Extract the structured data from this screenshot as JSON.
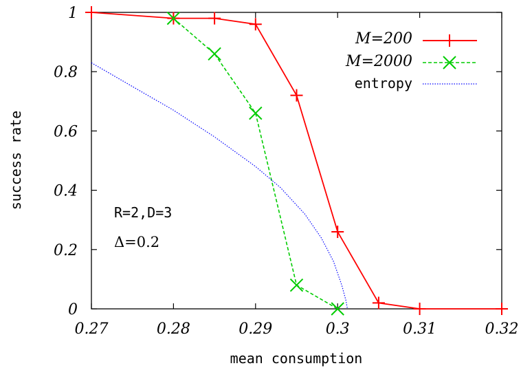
{
  "chart_data": {
    "type": "line",
    "title": "",
    "xlabel": "mean consumption",
    "ylabel": "success rate",
    "xlim": [
      0.27,
      0.32
    ],
    "ylim": [
      0,
      1
    ],
    "x_ticks": [
      0.27,
      0.28,
      0.29,
      0.3,
      0.31,
      0.32
    ],
    "x_tick_labels": [
      "0.27",
      "0.28",
      "0.29",
      "0.3",
      "0.31",
      "0.32"
    ],
    "y_ticks": [
      0,
      0.2,
      0.4,
      0.6,
      0.8,
      1
    ],
    "y_tick_labels": [
      "0",
      "0.2",
      "0.4",
      "0.6",
      "0.8",
      "1"
    ],
    "grid": false,
    "legend_position": "top-right",
    "annotations": [
      "R=2,D=3",
      "Δ=0.2"
    ],
    "series": [
      {
        "name": "M=200",
        "color": "#ff0000",
        "marker": "plus",
        "line_style": "solid",
        "x": [
          0.27,
          0.28,
          0.285,
          0.29,
          0.295,
          0.3,
          0.305,
          0.31,
          0.32
        ],
        "y": [
          1.0,
          0.98,
          0.98,
          0.96,
          0.72,
          0.26,
          0.02,
          0.0,
          0.0
        ]
      },
      {
        "name": "M=2000",
        "color": "#00cc00",
        "marker": "cross",
        "line_style": "dashed",
        "x": [
          0.28,
          0.285,
          0.29,
          0.295,
          0.3
        ],
        "y": [
          0.98,
          0.86,
          0.66,
          0.08,
          0.0
        ]
      },
      {
        "name": "entropy",
        "color": "#0000ff",
        "marker": "none",
        "line_style": "dotted",
        "x": [
          0.27,
          0.275,
          0.28,
          0.285,
          0.29,
          0.293,
          0.296,
          0.298,
          0.2995,
          0.3005,
          0.301,
          0.3012
        ],
        "y": [
          0.83,
          0.75,
          0.67,
          0.58,
          0.48,
          0.41,
          0.32,
          0.24,
          0.16,
          0.08,
          0.03,
          0.0
        ]
      }
    ]
  }
}
